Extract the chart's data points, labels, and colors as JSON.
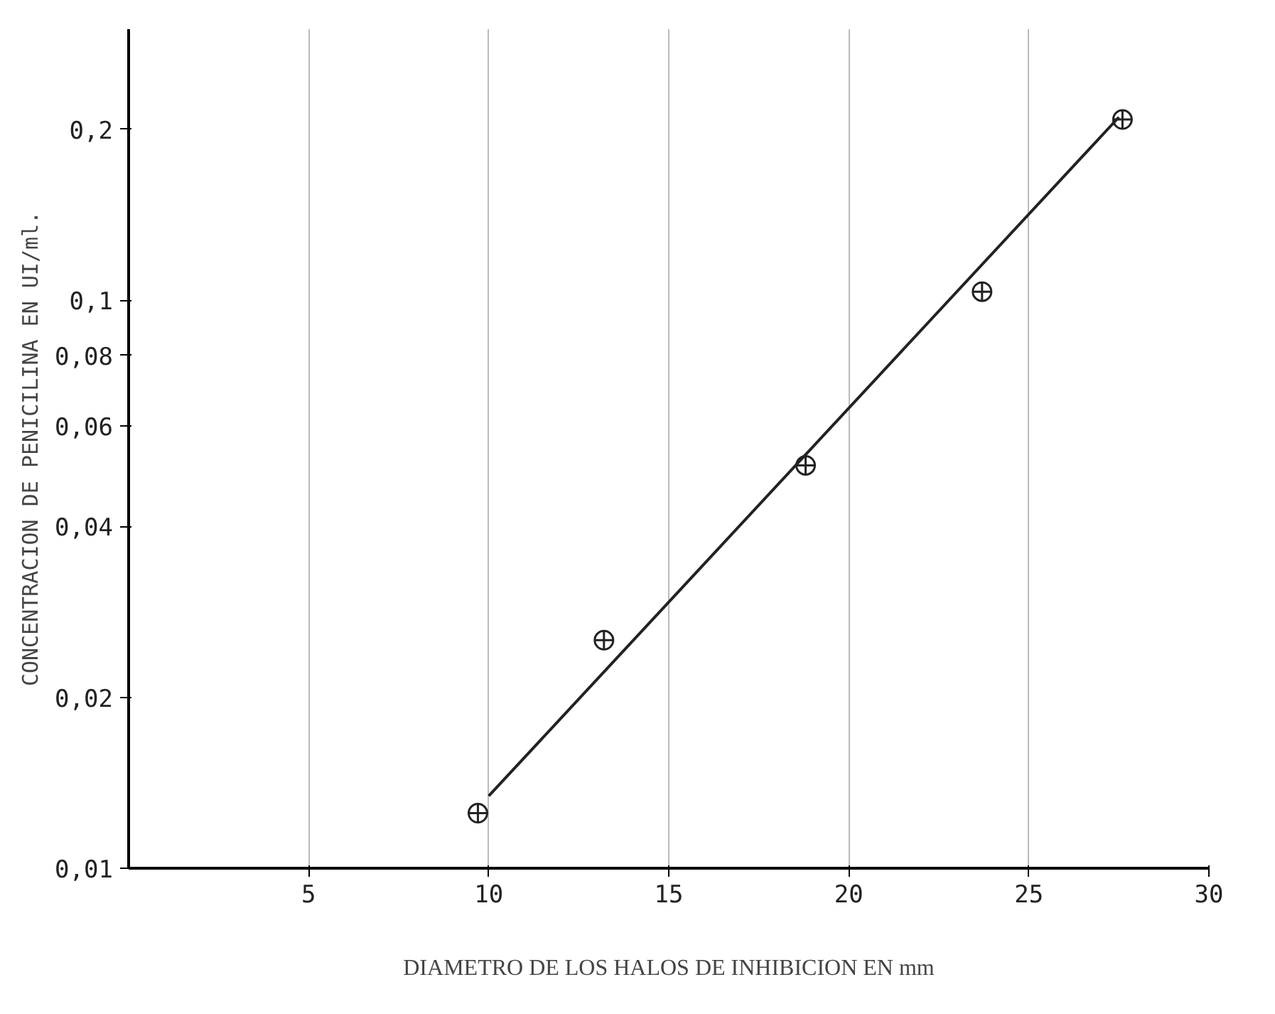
{
  "chart_data": {
    "type": "scatter",
    "xlabel": "DIAMETRO DE LOS HALOS DE INHIBICION EN mm",
    "ylabel": "CONCENTRACION DE PENICILINA EN UI/ml.",
    "log": "y",
    "grid": "x",
    "xlim": [
      0,
      30
    ],
    "xticks": [
      5,
      10,
      15,
      20,
      25,
      30
    ],
    "ylim": [
      0.01,
      0.3
    ],
    "yticks": [
      {
        "value": 0.01,
        "label": "0,01"
      },
      {
        "value": 0.02,
        "label": "0,02"
      },
      {
        "value": 0.04,
        "label": "0,04"
      },
      {
        "value": 0.06,
        "label": "0,06"
      },
      {
        "value": 0.08,
        "label": "0,08"
      },
      {
        "value": 0.1,
        "label": "0,1"
      },
      {
        "value": 0.2,
        "label": "0,2"
      }
    ],
    "series": [
      {
        "marker": "circle",
        "color": "#222222",
        "x": [
          9.7,
          13.2,
          18.8,
          23.7,
          27.6
        ],
        "values": [
          0.0125,
          0.0252,
          0.0512,
          0.1035,
          0.208
        ]
      },
      {
        "type": "line",
        "color": "#222222",
        "line_style": "solid",
        "x": [
          10,
          27.5
        ],
        "values": [
          0.0134,
          0.21
        ]
      }
    ]
  }
}
